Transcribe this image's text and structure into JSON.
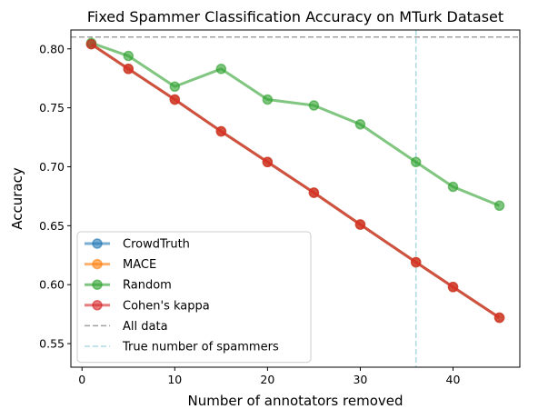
{
  "chart_data": {
    "type": "line",
    "title": "Fixed Spammer Classification Accuracy on MTurk Dataset",
    "xlabel": "Number of annotators removed",
    "ylabel": "Accuracy",
    "xlim": [
      -1.2,
      47.2
    ],
    "ylim": [
      0.53,
      0.816
    ],
    "xticks": [
      0,
      10,
      20,
      30,
      40
    ],
    "yticks": [
      0.55,
      0.6,
      0.65,
      0.7,
      0.75,
      0.8
    ],
    "ytick_labels": [
      "0.55",
      "0.60",
      "0.65",
      "0.70",
      "0.75",
      "0.80"
    ],
    "grid": false,
    "legend_position": "lower-left",
    "x": [
      1,
      5,
      10,
      15,
      20,
      25,
      30,
      36,
      40,
      45
    ],
    "series": [
      {
        "name": "CrowdTruth",
        "color": "#1f77b4",
        "values": [
          0.804,
          0.783,
          0.757,
          0.73,
          0.704,
          0.678,
          0.651,
          0.619,
          0.598,
          0.572
        ]
      },
      {
        "name": "MACE",
        "color": "#ff7f0e",
        "values": [
          0.804,
          0.783,
          0.757,
          0.73,
          0.704,
          0.678,
          0.651,
          0.619,
          0.598,
          0.572
        ]
      },
      {
        "name": "Random",
        "color": "#2ca02c",
        "values": [
          0.805,
          0.794,
          0.768,
          0.783,
          0.757,
          0.752,
          0.736,
          0.704,
          0.683,
          0.667
        ]
      },
      {
        "name": "Cohen's kappa",
        "color": "#d62728",
        "values": [
          0.804,
          0.783,
          0.757,
          0.73,
          0.704,
          0.678,
          0.651,
          0.619,
          0.598,
          0.572
        ]
      }
    ],
    "reference_lines": [
      {
        "name": "All data",
        "orientation": "horizontal",
        "value": 0.81,
        "color": "#a0a0a0",
        "style": "dashed"
      },
      {
        "name": "True number of spammers",
        "orientation": "vertical",
        "value": 36,
        "color": "#add8e6",
        "style": "dashed"
      }
    ]
  }
}
